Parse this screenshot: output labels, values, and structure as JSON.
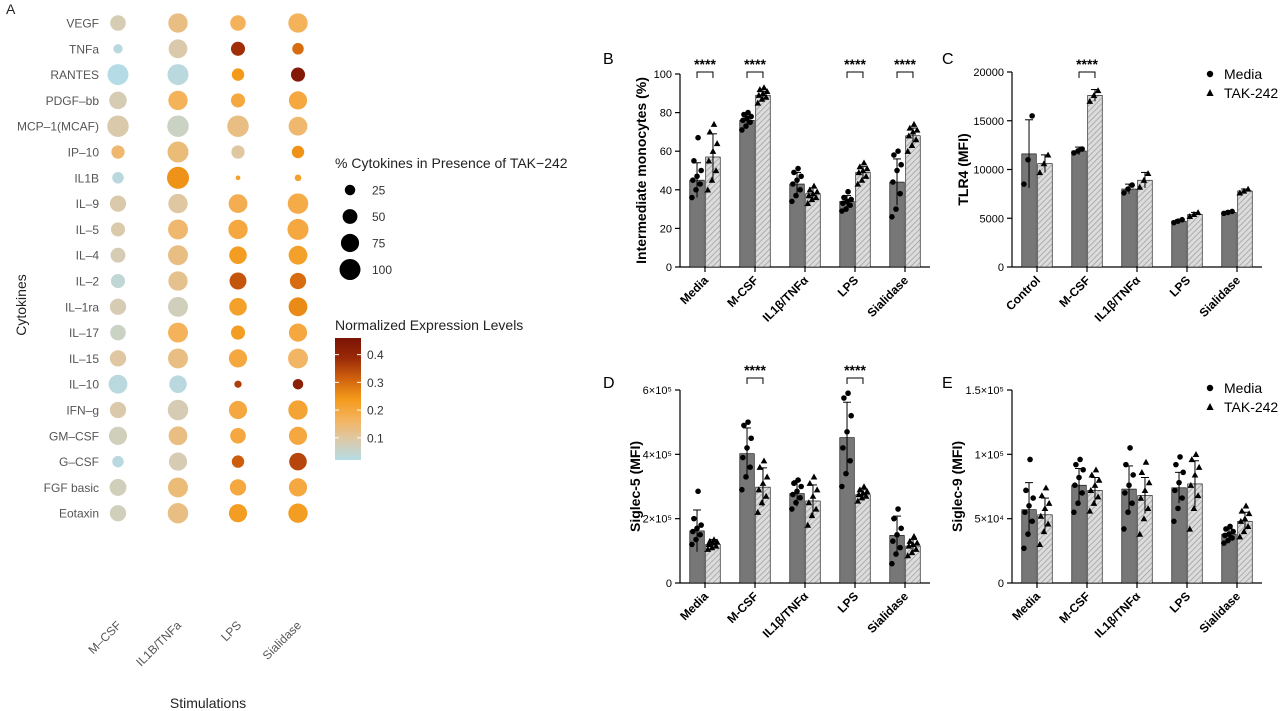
{
  "figure": {
    "description": "Multi-panel figure: cytokine bubble plot and monocyte bar charts"
  },
  "colors": {
    "bar_media": "#777777",
    "bar_tak": "#d9d9d9",
    "bar_tak_hatch": "#9a9a9a",
    "legend_scale": [
      "#b5dce6",
      "#dcc9a8",
      "#f4b35d",
      "#f49a1a",
      "#d0620e",
      "#9b2a08",
      "#7a1305"
    ]
  },
  "chart_data": [
    {
      "id": "A",
      "panel_label": "A",
      "type": "heatmap",
      "title": "",
      "xlabel": "Stimulations",
      "ylabel": "Cytokines",
      "categories_x": [
        "M–CSF",
        "IL1B/TNFa",
        "LPS",
        "Sialidase"
      ],
      "categories_y": [
        "VEGF",
        "TNFa",
        "RANTES",
        "PDGF–bb",
        "MCP–1(MCAF)",
        "IP–10",
        "IL1B",
        "IL–9",
        "IL–5",
        "IL–4",
        "IL–2",
        "IL–1ra",
        "IL–17",
        "IL–15",
        "IL–10",
        "IFN–g",
        "GM–CSF",
        "G–CSF",
        "FGF basic",
        "Eotaxin"
      ],
      "size_values": [
        [
          55,
          85,
          55,
          85
        ],
        [
          20,
          80,
          45,
          30
        ],
        [
          100,
          100,
          35,
          45
        ],
        [
          70,
          85,
          45,
          75
        ],
        [
          105,
          105,
          105,
          80
        ],
        [
          40,
          100,
          40,
          35
        ],
        [
          30,
          110,
          5,
          10
        ],
        [
          60,
          85,
          80,
          95
        ],
        [
          45,
          90,
          85,
          100
        ],
        [
          50,
          90,
          70,
          80
        ],
        [
          45,
          85,
          65,
          60
        ],
        [
          60,
          90,
          70,
          80
        ],
        [
          55,
          90,
          45,
          75
        ],
        [
          60,
          90,
          75,
          90
        ],
        [
          80,
          70,
          12,
          25
        ],
        [
          60,
          95,
          75,
          85
        ],
        [
          75,
          80,
          55,
          75
        ],
        [
          30,
          75,
          35,
          70
        ],
        [
          65,
          90,
          60,
          75
        ],
        [
          60,
          95,
          75,
          85
        ]
      ],
      "color_values": [
        [
          0.08,
          0.13,
          0.17,
          0.17
        ],
        [
          0.03,
          0.09,
          0.38,
          0.3
        ],
        [
          0.02,
          0.03,
          0.24,
          0.44
        ],
        [
          0.08,
          0.17,
          0.2,
          0.2
        ],
        [
          0.09,
          0.06,
          0.13,
          0.15
        ],
        [
          0.15,
          0.14,
          0.1,
          0.25
        ],
        [
          0.03,
          0.25,
          0.22,
          0.22
        ],
        [
          0.09,
          0.1,
          0.18,
          0.19
        ],
        [
          0.09,
          0.15,
          0.2,
          0.2
        ],
        [
          0.08,
          0.13,
          0.23,
          0.22
        ],
        [
          0.04,
          0.12,
          0.33,
          0.3
        ],
        [
          0.08,
          0.07,
          0.22,
          0.26
        ],
        [
          0.06,
          0.17,
          0.23,
          0.2
        ],
        [
          0.1,
          0.13,
          0.2,
          0.16
        ],
        [
          0.03,
          0.03,
          0.36,
          0.42
        ],
        [
          0.09,
          0.08,
          0.2,
          0.21
        ],
        [
          0.07,
          0.13,
          0.2,
          0.2
        ],
        [
          0.03,
          0.08,
          0.32,
          0.35
        ],
        [
          0.07,
          0.14,
          0.2,
          0.2
        ],
        [
          0.07,
          0.13,
          0.23,
          0.23
        ]
      ],
      "size_legend": {
        "title": "% Cytokines in Presence of TAK−242",
        "values": [
          25,
          50,
          75,
          100
        ],
        "labels": [
          "25",
          "50",
          "75",
          "100"
        ]
      },
      "color_legend": {
        "title": "Normalized Expression Levels",
        "range": [
          0.02,
          0.46
        ],
        "ticks": [
          0.1,
          0.2,
          0.3,
          0.4
        ],
        "tick_labels": [
          "0.1",
          "0.2",
          "0.3",
          "0.4"
        ]
      }
    },
    {
      "id": "B",
      "panel_label": "B",
      "type": "bar",
      "title": "",
      "xlabel": "",
      "ylabel": "Intermediate monocytes (%)",
      "categories": [
        "Media",
        "M-CSF",
        "IL1β/TNFα",
        "LPS",
        "Sialidase"
      ],
      "ylim": [
        0,
        100
      ],
      "yticks": [
        0,
        20,
        40,
        60,
        80,
        100
      ],
      "ytick_labels": [
        "0",
        "20",
        "40",
        "60",
        "80",
        "100"
      ],
      "series": [
        {
          "name": "Media",
          "values": [
            45,
            76,
            43,
            34,
            44
          ],
          "errors": [
            9,
            3,
            6,
            3,
            12
          ]
        },
        {
          "name": "TAK-242",
          "values": [
            57,
            89,
            38,
            49,
            68
          ],
          "errors": [
            12,
            2,
            3,
            3,
            4
          ]
        }
      ],
      "points": [
        [
          [
            36,
            40,
            43,
            45,
            47,
            50,
            55,
            67
          ],
          [
            71,
            73,
            75,
            76,
            77,
            78,
            79,
            80
          ],
          [
            34,
            37,
            40,
            43,
            45,
            47,
            49,
            51
          ],
          [
            29,
            30,
            32,
            33,
            34,
            35,
            36,
            39
          ],
          [
            26,
            30,
            38,
            44,
            50,
            53,
            58,
            60
          ]
        ],
        [
          [
            40,
            45,
            50,
            55,
            60,
            64,
            70,
            74
          ],
          [
            85,
            87,
            88,
            89,
            90,
            91,
            92,
            93
          ],
          [
            33,
            35,
            36,
            37,
            38,
            39,
            40,
            42
          ],
          [
            43,
            45,
            47,
            49,
            50,
            51,
            52,
            54
          ],
          [
            60,
            63,
            66,
            68,
            70,
            71,
            72,
            74
          ]
        ]
      ],
      "significance": [
        {
          "category_index": 0,
          "label": "****"
        },
        {
          "category_index": 1,
          "label": "****"
        },
        {
          "category_index": 3,
          "label": "****"
        },
        {
          "category_index": 4,
          "label": "****"
        }
      ]
    },
    {
      "id": "C",
      "panel_label": "C",
      "type": "bar",
      "title": "",
      "xlabel": "",
      "ylabel": "TLR4 (MFI)",
      "categories": [
        "Control",
        "M-CSF",
        "IL1β/TNFα",
        "LPS",
        "Sialidase"
      ],
      "ylim": [
        0,
        20000
      ],
      "yticks": [
        0,
        5000,
        10000,
        15000,
        20000
      ],
      "ytick_labels": [
        "0",
        "5000",
        "10000",
        "15000",
        "20000"
      ],
      "series": [
        {
          "name": "Media",
          "values": [
            11600,
            11900,
            8000,
            4700,
            5600
          ],
          "errors": [
            3500,
            400,
            500,
            150,
            120
          ]
        },
        {
          "name": "TAK-242",
          "values": [
            10600,
            17600,
            8900,
            5400,
            7800
          ],
          "errors": [
            900,
            600,
            800,
            200,
            200
          ]
        }
      ],
      "points": [
        [
          [
            8500,
            11000,
            15500
          ],
          [
            11700,
            11900,
            12100
          ],
          [
            7600,
            8000,
            8400
          ],
          [
            4550,
            4700,
            4850
          ],
          [
            5500,
            5600,
            5700
          ]
        ],
        [
          [
            9700,
            10600,
            11500
          ],
          [
            17000,
            17600,
            18100
          ],
          [
            8200,
            8900,
            9600
          ],
          [
            5200,
            5400,
            5600
          ],
          [
            7600,
            7800,
            8000
          ]
        ]
      ],
      "legend": [
        "Media",
        "TAK-242"
      ],
      "significance": [
        {
          "category_index": 1,
          "label": "****"
        }
      ]
    },
    {
      "id": "D",
      "panel_label": "D",
      "type": "bar",
      "title": "",
      "xlabel": "",
      "ylabel": "Siglec-5 (MFI)",
      "categories": [
        "Media",
        "M-CSF",
        "IL1β/TNFα",
        "LPS",
        "Sialidase"
      ],
      "ylim": [
        0,
        600000
      ],
      "yticks": [
        0,
        200000,
        400000,
        600000
      ],
      "ytick_labels": [
        "0",
        "2×10⁵",
        "4×10⁵",
        "6×10⁵"
      ],
      "series": [
        {
          "name": "Media",
          "values": [
            162000,
            402000,
            278000,
            452000,
            148000
          ],
          "errors": [
            65000,
            80000,
            40000,
            110000,
            60000
          ]
        },
        {
          "name": "TAK-242",
          "values": [
            120000,
            298000,
            255000,
            275000,
            115000
          ],
          "errors": [
            15000,
            60000,
            50000,
            15000,
            20000
          ]
        }
      ],
      "points": [
        [
          [
            120000,
            135000,
            150000,
            160000,
            170000,
            180000,
            200000,
            285000
          ],
          [
            290000,
            330000,
            360000,
            390000,
            420000,
            450000,
            490000,
            500000
          ],
          [
            230000,
            250000,
            265000,
            275000,
            285000,
            300000,
            310000,
            320000
          ],
          [
            300000,
            340000,
            380000,
            420000,
            470000,
            520000,
            575000,
            590000
          ],
          [
            60000,
            90000,
            110000,
            130000,
            150000,
            170000,
            200000,
            230000
          ]
        ],
        [
          [
            105000,
            110000,
            115000,
            120000,
            125000,
            128000,
            130000,
            135000
          ],
          [
            220000,
            250000,
            270000,
            290000,
            310000,
            330000,
            360000,
            380000
          ],
          [
            180000,
            210000,
            230000,
            250000,
            270000,
            290000,
            310000,
            330000
          ],
          [
            255000,
            265000,
            270000,
            275000,
            280000,
            285000,
            290000,
            300000
          ],
          [
            85000,
            95000,
            105000,
            115000,
            120000,
            125000,
            130000,
            145000
          ]
        ]
      ],
      "significance": [
        {
          "category_index": 1,
          "label": "****"
        },
        {
          "category_index": 3,
          "label": "****"
        }
      ]
    },
    {
      "id": "E",
      "panel_label": "E",
      "type": "bar",
      "title": "",
      "xlabel": "",
      "ylabel": "Siglec-9 (MFI)",
      "categories": [
        "Media",
        "M-CSF",
        "IL1β/TNFα",
        "LPS",
        "Sialidase"
      ],
      "ylim": [
        0,
        150000
      ],
      "yticks": [
        0,
        50000,
        100000,
        150000
      ],
      "ytick_labels": [
        "0",
        "5×10⁴",
        "1×10⁵",
        "1.5×10⁵"
      ],
      "series": [
        {
          "name": "Media",
          "values": [
            57000,
            76000,
            73000,
            74000,
            38000
          ],
          "errors": [
            21000,
            13000,
            18000,
            12000,
            4000
          ]
        },
        {
          "name": "TAK-242",
          "values": [
            53000,
            72000,
            68000,
            77000,
            48000
          ],
          "errors": [
            13000,
            10000,
            14000,
            18000,
            7000
          ]
        }
      ],
      "points": [
        [
          [
            27000,
            38000,
            48000,
            55000,
            60000,
            66000,
            72000,
            96000
          ],
          [
            55000,
            62000,
            70000,
            76000,
            82000,
            88000,
            92000,
            96000
          ],
          [
            42000,
            55000,
            62000,
            70000,
            76000,
            84000,
            92000,
            105000
          ],
          [
            48000,
            58000,
            66000,
            72000,
            78000,
            86000,
            92000,
            98000
          ],
          [
            31000,
            33000,
            35000,
            37000,
            38000,
            40000,
            42000,
            44000
          ]
        ],
        [
          [
            30000,
            40000,
            46000,
            52000,
            58000,
            62000,
            68000,
            74000
          ],
          [
            56000,
            62000,
            67000,
            72000,
            76000,
            80000,
            84000,
            88000
          ],
          [
            38000,
            50000,
            58000,
            66000,
            72000,
            78000,
            86000,
            94000
          ],
          [
            42000,
            58000,
            68000,
            76000,
            84000,
            90000,
            96000,
            100000
          ],
          [
            36000,
            40000,
            44000,
            48000,
            50000,
            54000,
            56000,
            60000
          ]
        ]
      ],
      "legend": [
        "Media",
        "TAK-242"
      ],
      "significance": []
    }
  ]
}
